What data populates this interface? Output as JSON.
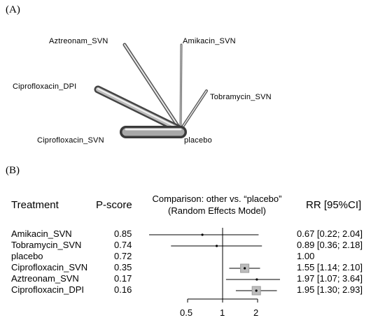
{
  "panel_a": {
    "label": "(A)",
    "nodes": [
      "Aztreonam_SVN",
      "Amikacin_SVN",
      "Ciprofloxacin_DPI",
      "Tobramycin_SVN",
      "Ciprofloxacin_SVN",
      "placebo"
    ]
  },
  "panel_b": {
    "label": "(B)",
    "headers": {
      "treatment": "Treatment",
      "pscore": "P-score",
      "comparison_line1": "Comparison: other vs. “placebo”",
      "comparison_line2": "(Random Effects Model)",
      "rr": "RR [95%CI]"
    },
    "rows": [
      {
        "treatment": "Amikacin_SVN",
        "pscore": "0.85",
        "rr_text": "0.67 [0.22; 2.04]"
      },
      {
        "treatment": "Tobramycin_SVN",
        "pscore": "0.74",
        "rr_text": "0.89 [0.36; 2.18]"
      },
      {
        "treatment": "placebo",
        "pscore": "0.72",
        "rr_text": "1.00"
      },
      {
        "treatment": "Ciprofloxacin_SVN",
        "pscore": "0.35",
        "rr_text": "1.55 [1.14; 2.10]"
      },
      {
        "treatment": "Aztreonam_SVN",
        "pscore": "0.17",
        "rr_text": "1.97 [1.07; 3.64]"
      },
      {
        "treatment": "Ciprofloxacin_DPI",
        "pscore": "0.16",
        "rr_text": "1.95 [1.30; 2.93]"
      }
    ],
    "axis_ticks": [
      "0.5",
      "1",
      "2"
    ]
  },
  "chart_data": {
    "type": "forest",
    "scale": "log",
    "reference": 1,
    "ticks": [
      0.5,
      1,
      2
    ],
    "rows": [
      {
        "treatment": "Amikacin_SVN",
        "rr": 0.67,
        "lower": 0.22,
        "upper": 2.04
      },
      {
        "treatment": "Tobramycin_SVN",
        "rr": 0.89,
        "lower": 0.36,
        "upper": 2.18
      },
      {
        "treatment": "placebo",
        "rr": 1.0
      },
      {
        "treatment": "Ciprofloxacin_SVN",
        "rr": 1.55,
        "lower": 1.14,
        "upper": 2.1
      },
      {
        "treatment": "Aztreonam_SVN",
        "rr": 1.97,
        "lower": 1.07,
        "upper": 3.64
      },
      {
        "treatment": "Ciprofloxacin_DPI",
        "rr": 1.95,
        "lower": 1.3,
        "upper": 2.93
      }
    ]
  }
}
